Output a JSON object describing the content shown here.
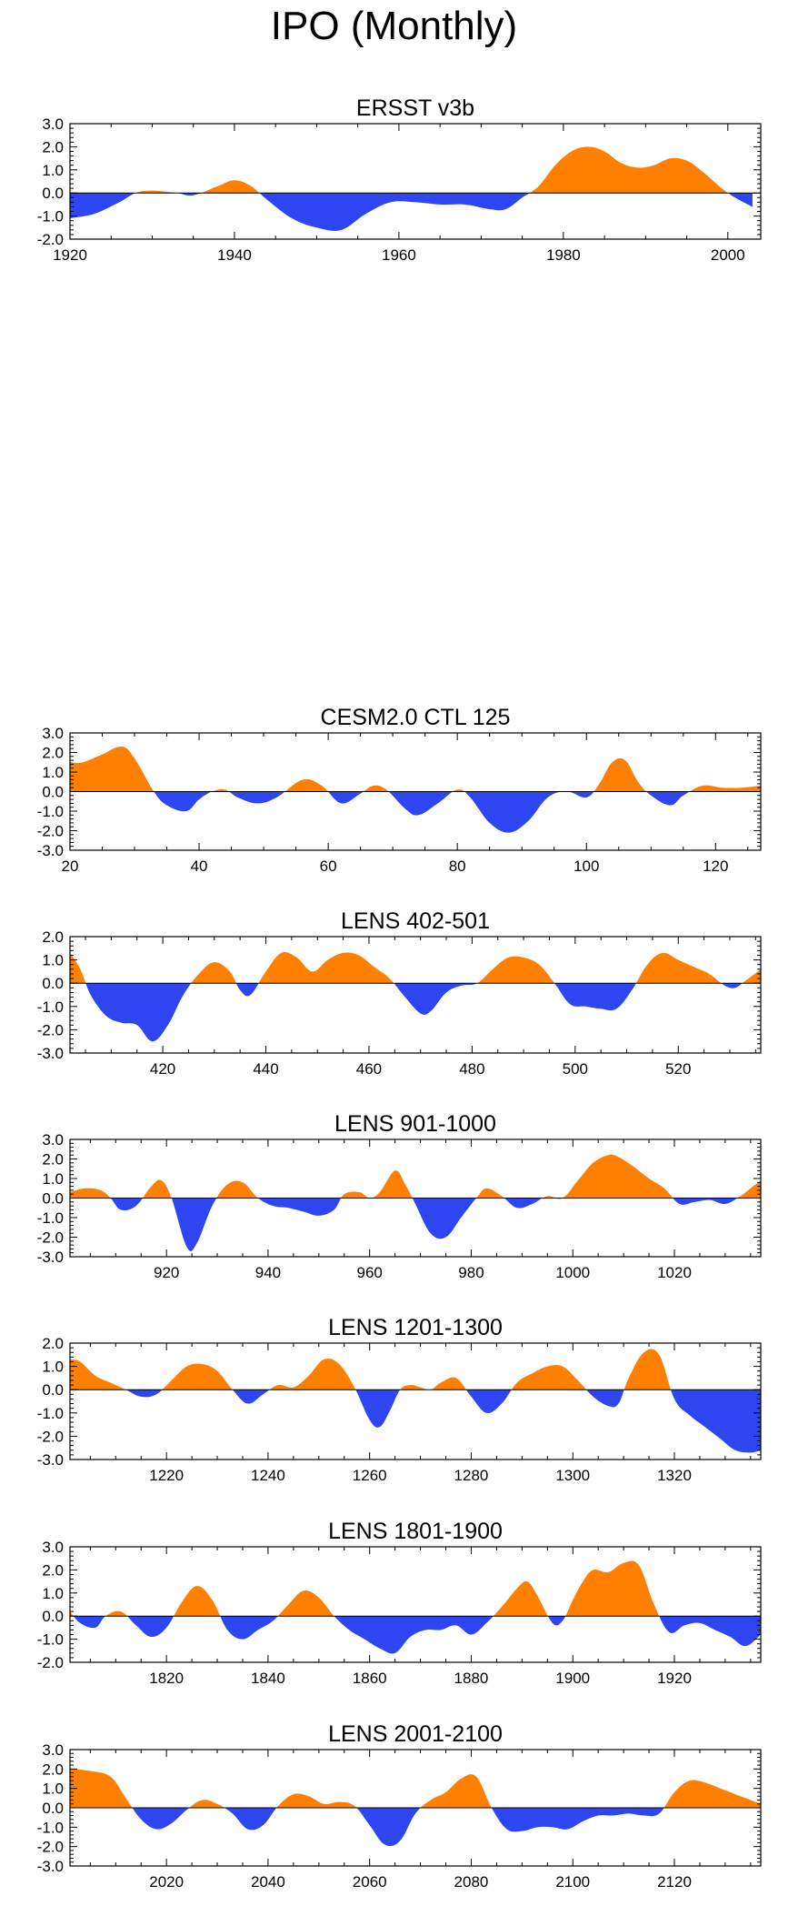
{
  "main_title": "IPO (Monthly)",
  "colors": {
    "positive": "#FF8000",
    "negative": "#2D46F2",
    "axis": "#000000"
  },
  "chart_data": [
    {
      "type": "area",
      "title": "ERSST v3b",
      "xlim": [
        1920,
        2004
      ],
      "ylim": [
        -2.0,
        3.0
      ],
      "yticks": [
        -2.0,
        -1.0,
        0.0,
        1.0,
        2.0,
        3.0
      ],
      "xticks": [
        1920,
        1940,
        1960,
        1980,
        2000
      ],
      "x": [
        1920,
        1923,
        1926,
        1928,
        1930,
        1933,
        1935,
        1938,
        1940,
        1942,
        1944,
        1947,
        1950,
        1953,
        1956,
        1959,
        1962,
        1965,
        1968,
        1971,
        1973,
        1975,
        1977,
        1979,
        1981,
        1983,
        1985,
        1987,
        1989,
        1991,
        1993,
        1995,
        1997,
        2000,
        2003
      ],
      "values": [
        -1.1,
        -0.9,
        -0.4,
        0.0,
        0.1,
        0.0,
        -0.1,
        0.3,
        0.55,
        0.3,
        -0.3,
        -1.1,
        -1.5,
        -1.6,
        -0.9,
        -0.4,
        -0.4,
        -0.5,
        -0.5,
        -0.7,
        -0.7,
        -0.2,
        0.3,
        1.2,
        1.8,
        2.0,
        1.8,
        1.3,
        1.1,
        1.2,
        1.5,
        1.4,
        0.9,
        0.0,
        -0.6
      ]
    },
    {
      "type": "area",
      "title": "CESM2.0 CTL 125",
      "xlim": [
        20,
        127
      ],
      "ylim": [
        -3.0,
        3.0
      ],
      "yticks": [
        -3.0,
        -2.0,
        -1.0,
        0.0,
        1.0,
        2.0,
        3.0
      ],
      "xticks": [
        20,
        40,
        60,
        80,
        100,
        120
      ],
      "x": [
        20,
        22,
        25,
        28,
        30,
        33,
        35,
        38,
        40,
        42,
        44,
        46,
        49,
        52,
        56,
        59,
        62,
        65,
        67,
        69,
        72,
        74,
        77,
        80,
        82,
        85,
        88,
        91,
        94,
        97,
        100,
        102,
        104,
        106,
        108,
        110,
        113,
        115,
        118,
        121,
        124,
        127
      ],
      "values": [
        1.5,
        1.5,
        1.9,
        2.3,
        1.7,
        0.0,
        -0.7,
        -1.0,
        -0.4,
        0.0,
        0.1,
        -0.3,
        -0.6,
        -0.3,
        0.6,
        0.3,
        -0.6,
        -0.1,
        0.3,
        0.1,
        -0.9,
        -1.2,
        -0.6,
        0.1,
        -0.3,
        -1.6,
        -2.1,
        -1.5,
        -0.3,
        0.0,
        -0.3,
        0.4,
        1.5,
        1.6,
        0.5,
        -0.2,
        -0.7,
        -0.2,
        0.3,
        0.2,
        0.2,
        0.3
      ]
    },
    {
      "type": "area",
      "title": "LENS 402-501",
      "xlim": [
        402,
        536
      ],
      "ylim": [
        -3.0,
        2.0
      ],
      "yticks": [
        -3.0,
        -2.0,
        -1.0,
        0.0,
        1.0,
        2.0
      ],
      "xticks": [
        420,
        440,
        460,
        480,
        500,
        520
      ],
      "x": [
        402,
        404,
        406,
        409,
        412,
        415,
        418,
        421,
        424,
        427,
        430,
        433,
        435,
        437,
        440,
        443,
        446,
        449,
        452,
        455,
        458,
        461,
        464,
        467,
        470,
        472,
        475,
        478,
        481,
        484,
        487,
        490,
        493,
        496,
        499,
        502,
        505,
        508,
        511,
        514,
        517,
        520,
        523,
        526,
        529,
        531,
        533,
        536
      ],
      "values": [
        1.3,
        0.6,
        -0.5,
        -1.4,
        -1.7,
        -1.8,
        -2.5,
        -1.8,
        -0.5,
        0.4,
        0.9,
        0.5,
        -0.3,
        -0.5,
        0.5,
        1.3,
        1.1,
        0.5,
        1.0,
        1.3,
        1.2,
        0.7,
        0.2,
        -0.6,
        -1.3,
        -1.2,
        -0.4,
        -0.1,
        0.0,
        0.6,
        1.1,
        1.1,
        0.8,
        0.0,
        -0.9,
        -1.0,
        -1.1,
        -1.1,
        -0.3,
        0.8,
        1.3,
        1.0,
        0.7,
        0.4,
        -0.1,
        -0.2,
        0.1,
        0.6
      ]
    },
    {
      "type": "area",
      "title": "LENS 901-1000",
      "xlim": [
        901,
        1037
      ],
      "ylim": [
        -3.0,
        3.0
      ],
      "yticks": [
        -3.0,
        -2.0,
        -1.0,
        0.0,
        1.0,
        2.0,
        3.0
      ],
      "xticks": [
        920,
        940,
        960,
        980,
        1000,
        1020
      ],
      "x": [
        901,
        904,
        907,
        909,
        911,
        914,
        917,
        919,
        921,
        924,
        926,
        929,
        932,
        935,
        938,
        941,
        944,
        947,
        950,
        953,
        955,
        958,
        960,
        962,
        965,
        967,
        969,
        972,
        975,
        978,
        981,
        983,
        986,
        989,
        992,
        995,
        998,
        1001,
        1004,
        1007,
        1009,
        1012,
        1015,
        1018,
        1021,
        1024,
        1027,
        1030,
        1033,
        1035,
        1037
      ],
      "values": [
        0.3,
        0.5,
        0.4,
        0.0,
        -0.6,
        -0.4,
        0.6,
        0.9,
        0.0,
        -2.5,
        -2.3,
        -0.4,
        0.7,
        0.8,
        0.0,
        -0.4,
        -0.5,
        -0.7,
        -0.9,
        -0.6,
        0.2,
        0.3,
        0.0,
        0.3,
        1.4,
        0.7,
        -0.3,
        -1.8,
        -2.0,
        -1.0,
        0.0,
        0.5,
        0.1,
        -0.5,
        -0.3,
        0.1,
        0.0,
        0.9,
        1.8,
        2.2,
        2.1,
        1.6,
        1.0,
        0.5,
        -0.3,
        -0.2,
        -0.1,
        -0.3,
        0.1,
        0.5,
        0.9
      ]
    },
    {
      "type": "area",
      "title": "LENS 1201-1300",
      "xlim": [
        1201,
        1337
      ],
      "ylim": [
        -3.0,
        2.0
      ],
      "yticks": [
        -3.0,
        -2.0,
        -1.0,
        0.0,
        1.0,
        2.0
      ],
      "xticks": [
        1220,
        1240,
        1260,
        1280,
        1300,
        1320
      ],
      "x": [
        1201,
        1203,
        1206,
        1209,
        1212,
        1215,
        1218,
        1221,
        1224,
        1227,
        1230,
        1233,
        1236,
        1239,
        1242,
        1245,
        1248,
        1251,
        1254,
        1257,
        1260,
        1262,
        1264,
        1266,
        1268,
        1270,
        1272,
        1274,
        1277,
        1280,
        1283,
        1286,
        1289,
        1292,
        1295,
        1298,
        1301,
        1304,
        1307,
        1309,
        1311,
        1314,
        1317,
        1320,
        1323,
        1326,
        1329,
        1332,
        1335,
        1337
      ],
      "values": [
        1.3,
        1.2,
        0.6,
        0.3,
        0.0,
        -0.3,
        -0.2,
        0.4,
        1.0,
        1.1,
        0.8,
        0.0,
        -0.6,
        -0.2,
        0.2,
        0.1,
        0.6,
        1.3,
        1.1,
        0.1,
        -1.3,
        -1.6,
        -0.9,
        0.0,
        0.2,
        0.1,
        0.0,
        0.3,
        0.5,
        -0.3,
        -1.0,
        -0.6,
        0.3,
        0.7,
        1.0,
        1.0,
        0.4,
        -0.3,
        -0.7,
        -0.6,
        0.5,
        1.6,
        1.5,
        -0.4,
        -1.1,
        -1.6,
        -2.1,
        -2.6,
        -2.7,
        -2.6
      ]
    },
    {
      "type": "area",
      "title": "LENS 1801-1900",
      "xlim": [
        1801,
        1937
      ],
      "ylim": [
        -2.0,
        3.0
      ],
      "yticks": [
        -2.0,
        -1.0,
        0.0,
        1.0,
        2.0,
        3.0
      ],
      "xticks": [
        1820,
        1840,
        1860,
        1880,
        1900,
        1920
      ],
      "x": [
        1801,
        1803,
        1806,
        1808,
        1811,
        1814,
        1817,
        1820,
        1823,
        1826,
        1829,
        1832,
        1835,
        1838,
        1841,
        1844,
        1847,
        1850,
        1853,
        1856,
        1859,
        1862,
        1865,
        1868,
        1871,
        1874,
        1877,
        1880,
        1883,
        1886,
        1889,
        1891,
        1893,
        1896,
        1898,
        1900,
        1902,
        1904,
        1907,
        1910,
        1913,
        1916,
        1919,
        1922,
        1925,
        1928,
        1931,
        1934,
        1937
      ],
      "values": [
        0.2,
        -0.3,
        -0.5,
        0.0,
        0.2,
        -0.4,
        -0.9,
        -0.5,
        0.6,
        1.3,
        0.7,
        -0.6,
        -1.0,
        -0.6,
        -0.2,
        0.5,
        1.1,
        0.8,
        0.0,
        -0.6,
        -1.0,
        -1.4,
        -1.6,
        -0.9,
        -0.6,
        -0.6,
        -0.4,
        -0.8,
        -0.3,
        0.4,
        1.2,
        1.5,
        0.9,
        -0.3,
        -0.2,
        0.7,
        1.5,
        2.0,
        1.9,
        2.3,
        2.2,
        0.5,
        -0.7,
        -0.4,
        -0.3,
        -0.6,
        -0.9,
        -1.3,
        -0.8
      ]
    },
    {
      "type": "area",
      "title": "LENS 2001-2100",
      "xlim": [
        2001,
        2137
      ],
      "ylim": [
        -3.0,
        3.0
      ],
      "yticks": [
        -3.0,
        -2.0,
        -1.0,
        0.0,
        1.0,
        2.0,
        3.0
      ],
      "xticks": [
        2020,
        2040,
        2060,
        2080,
        2100,
        2120
      ],
      "x": [
        2001,
        2005,
        2009,
        2012,
        2015,
        2018,
        2021,
        2024,
        2027,
        2030,
        2033,
        2036,
        2039,
        2042,
        2045,
        2048,
        2051,
        2054,
        2057,
        2060,
        2063,
        2066,
        2069,
        2072,
        2075,
        2078,
        2081,
        2084,
        2087,
        2090,
        2093,
        2096,
        2099,
        2102,
        2105,
        2108,
        2111,
        2114,
        2117,
        2120,
        2123,
        2126,
        2129,
        2132,
        2135,
        2137
      ],
      "values": [
        2.0,
        1.9,
        1.6,
        0.5,
        -0.6,
        -1.1,
        -0.8,
        -0.1,
        0.4,
        0.2,
        -0.3,
        -1.1,
        -0.9,
        0.1,
        0.7,
        0.6,
        0.2,
        0.3,
        0.1,
        -0.9,
        -1.9,
        -1.7,
        -0.3,
        0.4,
        0.8,
        1.5,
        1.6,
        0.0,
        -1.1,
        -1.2,
        -1.0,
        -1.0,
        -1.1,
        -0.7,
        -0.4,
        -0.4,
        -0.3,
        -0.4,
        -0.3,
        0.8,
        1.4,
        1.3,
        1.0,
        0.7,
        0.4,
        0.2
      ]
    }
  ]
}
